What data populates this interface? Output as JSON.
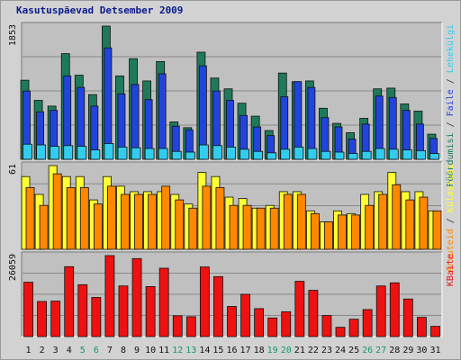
{
  "title": "Kasutuspäevad Detsember 2009",
  "colors": {
    "background": "#d2d2d2",
    "plot_background": "#c0c0c0",
    "title": "#0b1a8c",
    "visits": "#1e7a5a",
    "pages": "#2244dd",
    "files": "#33ccee",
    "hits": "#ffff33",
    "hosts": "#ff8800",
    "kbytes": "#ee1111",
    "weekend_label": "#11996a",
    "weekday_label": "#111111"
  },
  "chart_data": [
    {
      "type": "bar",
      "panel": "top",
      "ymax_label": "1853",
      "ylim": [
        0,
        1853
      ],
      "categories": [
        "1",
        "2",
        "3",
        "4",
        "5",
        "6",
        "7",
        "8",
        "9",
        "10",
        "11",
        "12",
        "13",
        "14",
        "15",
        "16",
        "17",
        "18",
        "19",
        "20",
        "21",
        "22",
        "23",
        "24",
        "25",
        "26",
        "27",
        "28",
        "29",
        "30",
        "31"
      ],
      "weekend_days": [
        "5",
        "6",
        "12",
        "13",
        "19",
        "20",
        "26",
        "27"
      ],
      "right_labels": [
        {
          "text": "Pöördumisi",
          "color": "#1e7a5a"
        },
        {
          "text": " / ",
          "color": "#333333"
        },
        {
          "text": "Faile",
          "color": "#2244dd"
        },
        {
          "text": " / ",
          "color": "#333333"
        },
        {
          "text": "Lehekülgi",
          "color": "#33ccee"
        }
      ],
      "series": [
        {
          "name": "Pöördumisi",
          "color": "#1e7a5a",
          "values": [
            1100,
            820,
            740,
            1470,
            1170,
            900,
            1853,
            1160,
            1400,
            1090,
            1360,
            520,
            440,
            1490,
            1130,
            980,
            780,
            600,
            400,
            1200,
            1080,
            1090,
            710,
            500,
            370,
            570,
            980,
            990,
            770,
            670,
            350
          ]
        },
        {
          "name": "Faile",
          "color": "#2244dd",
          "values": [
            950,
            660,
            680,
            1160,
            1000,
            740,
            1550,
            910,
            1040,
            830,
            1190,
            460,
            410,
            1300,
            950,
            820,
            610,
            450,
            330,
            870,
            1080,
            1000,
            580,
            450,
            280,
            490,
            880,
            860,
            680,
            490,
            290
          ]
        },
        {
          "name": "Lehekülgi",
          "color": "#33ccee",
          "values": [
            210,
            200,
            180,
            190,
            180,
            130,
            220,
            170,
            160,
            150,
            150,
            110,
            100,
            200,
            190,
            170,
            140,
            110,
            90,
            140,
            170,
            150,
            110,
            100,
            80,
            110,
            150,
            140,
            130,
            120,
            80
          ]
        }
      ]
    },
    {
      "type": "bar",
      "panel": "middle",
      "ymax_label": "61",
      "ylim": [
        0,
        61
      ],
      "categories": [
        "1",
        "2",
        "3",
        "4",
        "5",
        "6",
        "7",
        "8",
        "9",
        "10",
        "11",
        "12",
        "13",
        "14",
        "15",
        "16",
        "17",
        "18",
        "19",
        "20",
        "21",
        "22",
        "23",
        "24",
        "25",
        "26",
        "27",
        "28",
        "29",
        "30",
        "31"
      ],
      "right_labels": [
        {
          "text": "Arvuteid",
          "color": "#ff8800"
        },
        {
          "text": " / ",
          "color": "#333333"
        },
        {
          "text": "Külastusi",
          "color": "#ffff33"
        }
      ],
      "series": [
        {
          "name": "Külastusi",
          "color": "#ffff33",
          "values": [
            53,
            40,
            61,
            53,
            53,
            36,
            53,
            46,
            42,
            42,
            42,
            40,
            33,
            56,
            53,
            38,
            37,
            30,
            32,
            42,
            42,
            28,
            20,
            28,
            26,
            40,
            42,
            56,
            42,
            42,
            28
          ]
        },
        {
          "name": "Arvuteid",
          "color": "#ff8800",
          "values": [
            45,
            32,
            55,
            45,
            45,
            33,
            46,
            40,
            40,
            40,
            46,
            36,
            30,
            46,
            45,
            32,
            32,
            30,
            30,
            40,
            40,
            26,
            20,
            25,
            25,
            32,
            40,
            47,
            36,
            38,
            28
          ]
        }
      ]
    },
    {
      "type": "bar",
      "panel": "bottom",
      "ymax_label": "26059",
      "ylim": [
        0,
        26059
      ],
      "categories": [
        "1",
        "2",
        "3",
        "4",
        "5",
        "6",
        "7",
        "8",
        "9",
        "10",
        "11",
        "12",
        "13",
        "14",
        "15",
        "16",
        "17",
        "18",
        "19",
        "20",
        "21",
        "22",
        "23",
        "24",
        "25",
        "26",
        "27",
        "28",
        "29",
        "30",
        "31"
      ],
      "right_labels": [
        {
          "text": "KBaite",
          "color": "#ee1111"
        }
      ],
      "series": [
        {
          "name": "KBaite",
          "color": "#ee1111",
          "values": [
            17500,
            11300,
            11400,
            22500,
            16700,
            12600,
            26059,
            16300,
            25100,
            16100,
            22000,
            6700,
            6400,
            22400,
            19300,
            9700,
            13600,
            9000,
            6000,
            8000,
            17800,
            14900,
            6800,
            3000,
            5600,
            8700,
            16300,
            17300,
            12100,
            6200,
            3300
          ]
        }
      ]
    }
  ]
}
